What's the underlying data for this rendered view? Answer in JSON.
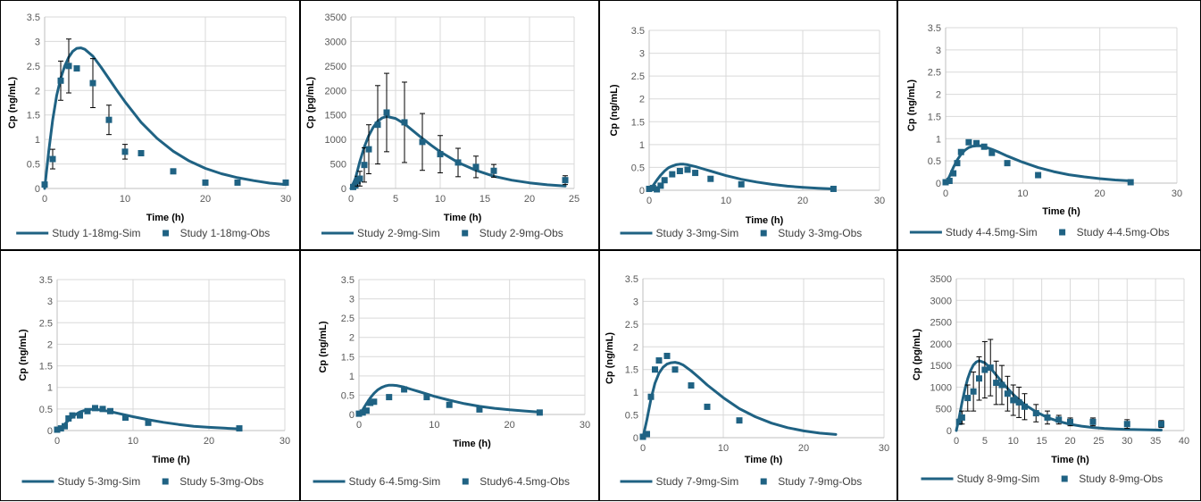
{
  "colors": {
    "series": "#1f6283",
    "grid": "#d9d9d9",
    "axis": "#bfbfbf",
    "text": "#595959"
  },
  "chart_data": [
    {
      "type": "scatter",
      "xlabel": "Time (h)",
      "ylabel": "Cp (ng/mL)",
      "xlim": [
        0,
        30
      ],
      "ylim": [
        0,
        3.5
      ],
      "xticks": [
        0,
        10,
        20,
        30
      ],
      "yticks": [
        0,
        0.5,
        1,
        1.5,
        2,
        2.5,
        3,
        3.5
      ],
      "grid": true,
      "legend": "bottom",
      "series": [
        {
          "name": "Study 1-18mg-Sim",
          "kind": "line",
          "x": [
            0,
            0.5,
            1,
            1.5,
            2,
            2.5,
            3,
            3.5,
            4,
            4.5,
            5,
            6,
            7,
            8,
            9,
            10,
            12,
            14,
            16,
            18,
            20,
            22,
            24,
            26,
            28,
            30
          ],
          "y": [
            0,
            0.75,
            1.4,
            1.9,
            2.25,
            2.5,
            2.68,
            2.8,
            2.86,
            2.87,
            2.84,
            2.7,
            2.48,
            2.24,
            2.0,
            1.77,
            1.35,
            1.02,
            0.76,
            0.56,
            0.41,
            0.3,
            0.22,
            0.16,
            0.11,
            0.08
          ]
        },
        {
          "name": "Study 1-18mg-Obs",
          "kind": "scatter",
          "x": [
            0,
            1,
            2,
            3,
            4,
            6,
            8,
            10,
            12,
            16,
            20,
            24,
            30
          ],
          "y": [
            0.08,
            0.6,
            2.2,
            2.5,
            2.45,
            2.15,
            1.4,
            0.75,
            0.72,
            0.35,
            0.12,
            0.12,
            0.12
          ],
          "err": [
            0,
            0.2,
            0.4,
            0.55,
            0,
            0.5,
            0.3,
            0.15,
            0,
            0,
            0,
            0,
            0
          ]
        }
      ]
    },
    {
      "type": "scatter",
      "xlabel": "Time (h)",
      "ylabel": "Cp (pg/mL)",
      "xlim": [
        0,
        25
      ],
      "ylim": [
        0,
        3500
      ],
      "xticks": [
        0,
        5,
        10,
        15,
        20,
        25
      ],
      "yticks": [
        0,
        500,
        1000,
        1500,
        2000,
        2500,
        3000,
        3500
      ],
      "grid": true,
      "legend": "bottom",
      "series": [
        {
          "name": "Study 2-9mg-Sim",
          "kind": "line",
          "x": [
            0,
            0.5,
            1,
            1.5,
            2,
            2.5,
            3,
            3.5,
            4,
            5,
            6,
            7,
            8,
            9,
            10,
            12,
            14,
            16,
            18,
            20,
            22,
            24
          ],
          "y": [
            0,
            200,
            550,
            850,
            1080,
            1250,
            1370,
            1440,
            1470,
            1430,
            1320,
            1170,
            1020,
            880,
            750,
            530,
            370,
            250,
            170,
            115,
            75,
            50
          ]
        },
        {
          "name": "Study 2-9mg-Obs",
          "kind": "scatter",
          "x": [
            0.25,
            0.5,
            0.75,
            1,
            1.5,
            2,
            3,
            4,
            6,
            8,
            10,
            12,
            14,
            16,
            24
          ],
          "y": [
            30,
            60,
            150,
            200,
            480,
            800,
            1300,
            1550,
            1350,
            950,
            700,
            530,
            440,
            360,
            170
          ],
          "err": [
            0,
            0,
            100,
            150,
            350,
            500,
            800,
            800,
            820,
            580,
            380,
            290,
            220,
            130,
            90
          ]
        }
      ]
    },
    {
      "type": "scatter",
      "xlabel": "Time (h)",
      "ylabel": "Cp (ng/mL)",
      "xlim": [
        0,
        30
      ],
      "ylim": [
        0,
        3.5
      ],
      "xticks": [
        0,
        10,
        20,
        30
      ],
      "yticks": [
        0,
        0.5,
        1,
        1.5,
        2,
        2.5,
        3,
        3.5
      ],
      "grid": true,
      "legend": "bottom",
      "series": [
        {
          "name": "Study 3-3mg-Sim",
          "kind": "line",
          "x": [
            0,
            0.5,
            1,
            1.5,
            2,
            2.5,
            3,
            3.5,
            4,
            4.5,
            5,
            6,
            7,
            8,
            9,
            10,
            12,
            14,
            16,
            18,
            20,
            22,
            24
          ],
          "y": [
            0,
            0.1,
            0.22,
            0.33,
            0.42,
            0.49,
            0.53,
            0.56,
            0.57,
            0.57,
            0.56,
            0.52,
            0.47,
            0.42,
            0.37,
            0.32,
            0.24,
            0.18,
            0.13,
            0.09,
            0.065,
            0.045,
            0.03
          ]
        },
        {
          "name": "Study 3-3mg-Obs",
          "kind": "scatter",
          "x": [
            0,
            0.5,
            1,
            1.5,
            2,
            3,
            4,
            5,
            6,
            8,
            12,
            24
          ],
          "y": [
            0.03,
            0.05,
            0.02,
            0.1,
            0.22,
            0.35,
            0.42,
            0.45,
            0.38,
            0.25,
            0.13,
            0.03
          ]
        }
      ]
    },
    {
      "type": "scatter",
      "xlabel": "Time (h)",
      "ylabel": "Cp (ng/mL)",
      "xlim": [
        0,
        30
      ],
      "ylim": [
        0,
        3.5
      ],
      "xticks": [
        0,
        10,
        20,
        30
      ],
      "yticks": [
        0,
        0.5,
        1,
        1.5,
        2,
        2.5,
        3,
        3.5
      ],
      "grid": true,
      "legend": "bottom",
      "series": [
        {
          "name": "Study 4-4.5mg-Sim",
          "kind": "line",
          "x": [
            0,
            0.5,
            1,
            1.5,
            2,
            2.5,
            3,
            3.5,
            4,
            4.5,
            5,
            6,
            7,
            8,
            9,
            10,
            12,
            14,
            16,
            18,
            20,
            22,
            24
          ],
          "y": [
            0,
            0.15,
            0.35,
            0.52,
            0.65,
            0.74,
            0.8,
            0.83,
            0.84,
            0.84,
            0.82,
            0.76,
            0.69,
            0.61,
            0.54,
            0.47,
            0.35,
            0.26,
            0.19,
            0.14,
            0.1,
            0.07,
            0.05
          ]
        },
        {
          "name": "Study 4-4.5mg-Obs",
          "kind": "scatter",
          "x": [
            0,
            0.5,
            1,
            1.5,
            2,
            3,
            4,
            5,
            6,
            8,
            12,
            24
          ],
          "y": [
            0.02,
            0.05,
            0.22,
            0.45,
            0.7,
            0.92,
            0.9,
            0.82,
            0.68,
            0.45,
            0.18,
            0.02
          ]
        }
      ]
    },
    {
      "type": "scatter",
      "xlabel": "Time (h)",
      "ylabel": "Cp (ng/mL)",
      "xlim": [
        0,
        30
      ],
      "ylim": [
        0,
        3.5
      ],
      "xticks": [
        0,
        10,
        20,
        30
      ],
      "yticks": [
        0,
        0.5,
        1,
        1.5,
        2,
        2.5,
        3,
        3.5
      ],
      "grid": true,
      "legend": "bottom",
      "series": [
        {
          "name": "Study 5-3mg-Sim",
          "kind": "line",
          "x": [
            0,
            0.5,
            1,
            1.5,
            2,
            2.5,
            3,
            3.5,
            4,
            4.5,
            5,
            6,
            7,
            8,
            9,
            10,
            12,
            14,
            16,
            18,
            20,
            22,
            24
          ],
          "y": [
            0,
            0.06,
            0.15,
            0.24,
            0.32,
            0.38,
            0.43,
            0.46,
            0.48,
            0.49,
            0.49,
            0.47,
            0.44,
            0.4,
            0.36,
            0.32,
            0.25,
            0.19,
            0.14,
            0.1,
            0.075,
            0.055,
            0.04
          ]
        },
        {
          "name": "Study 5-3mg-Obs",
          "kind": "scatter",
          "x": [
            0,
            0.5,
            1,
            1.5,
            2,
            3,
            4,
            5,
            6,
            7,
            9,
            12,
            24
          ],
          "y": [
            0.02,
            0.05,
            0.1,
            0.28,
            0.35,
            0.35,
            0.45,
            0.52,
            0.5,
            0.45,
            0.3,
            0.18,
            0.05
          ]
        }
      ]
    },
    {
      "type": "scatter",
      "xlabel": "Time (h)",
      "ylabel": "Cp (ng/mL)",
      "xlim": [
        0,
        30
      ],
      "ylim": [
        0,
        3.5
      ],
      "xticks": [
        0,
        10,
        20,
        30
      ],
      "yticks": [
        0,
        0.5,
        1,
        1.5,
        2,
        2.5,
        3,
        3.5
      ],
      "grid": true,
      "legend": "bottom",
      "series": [
        {
          "name": "Study 6-4.5mg-Sim",
          "kind": "line",
          "x": [
            0,
            0.5,
            1,
            1.5,
            2,
            2.5,
            3,
            3.5,
            4,
            4.5,
            5,
            6,
            7,
            8,
            9,
            10,
            12,
            14,
            16,
            18,
            20,
            22,
            24
          ],
          "y": [
            0,
            0.12,
            0.28,
            0.43,
            0.55,
            0.64,
            0.7,
            0.74,
            0.76,
            0.76,
            0.75,
            0.71,
            0.65,
            0.59,
            0.53,
            0.47,
            0.37,
            0.28,
            0.21,
            0.16,
            0.12,
            0.09,
            0.06
          ]
        },
        {
          "name": "Study6-4.5mg-Obs",
          "kind": "scatter",
          "x": [
            0,
            0.5,
            1,
            1.5,
            2,
            4,
            6,
            9,
            12,
            16,
            24
          ],
          "y": [
            0.02,
            0.05,
            0.1,
            0.3,
            0.33,
            0.45,
            0.65,
            0.45,
            0.25,
            0.13,
            0.05
          ]
        }
      ]
    },
    {
      "type": "scatter",
      "xlabel": "Time (h)",
      "ylabel": "Cp (ng/mL)",
      "xlim": [
        0,
        30
      ],
      "ylim": [
        0,
        3.5
      ],
      "xticks": [
        0,
        10,
        20,
        30
      ],
      "yticks": [
        0,
        0.5,
        1,
        1.5,
        2,
        2.5,
        3,
        3.5
      ],
      "grid": true,
      "legend": "bottom",
      "series": [
        {
          "name": "Study 7-9mg-Sim",
          "kind": "line",
          "x": [
            0,
            0.5,
            1,
            1.5,
            2,
            2.5,
            3,
            3.5,
            4,
            4.5,
            5,
            6,
            7,
            8,
            9,
            10,
            12,
            14,
            16,
            18,
            20,
            22,
            24
          ],
          "y": [
            0,
            0.4,
            0.85,
            1.2,
            1.42,
            1.55,
            1.62,
            1.65,
            1.66,
            1.64,
            1.6,
            1.47,
            1.32,
            1.16,
            1.02,
            0.88,
            0.64,
            0.46,
            0.32,
            0.22,
            0.15,
            0.1,
            0.07
          ]
        },
        {
          "name": "Study 7-9mg-Obs",
          "kind": "scatter",
          "x": [
            0,
            0.5,
            1,
            1.5,
            2,
            3,
            4,
            6,
            8,
            12
          ],
          "y": [
            0.02,
            0.08,
            0.9,
            1.5,
            1.7,
            1.8,
            1.5,
            1.15,
            0.68,
            0.38
          ]
        }
      ]
    },
    {
      "type": "scatter",
      "xlabel": "Time (h)",
      "ylabel": "Cp (pg/mL)",
      "xlim": [
        0,
        40
      ],
      "ylim": [
        0,
        3500
      ],
      "xticks": [
        0,
        5,
        10,
        15,
        20,
        25,
        30,
        35,
        40
      ],
      "yticks": [
        0,
        500,
        1000,
        1500,
        2000,
        2500,
        3000,
        3500
      ],
      "grid": true,
      "legend": "bottom",
      "series": [
        {
          "name": "Study 8-9mg-Sim",
          "kind": "line",
          "x": [
            0,
            0.5,
            1,
            1.5,
            2,
            2.5,
            3,
            3.5,
            4,
            5,
            6,
            7,
            8,
            9,
            10,
            12,
            14,
            16,
            18,
            20,
            22,
            24,
            26,
            28,
            30,
            32,
            34,
            36
          ],
          "y": [
            0,
            300,
            650,
            950,
            1200,
            1380,
            1510,
            1580,
            1610,
            1560,
            1440,
            1280,
            1120,
            970,
            830,
            600,
            430,
            300,
            210,
            145,
            100,
            70,
            50,
            35,
            25,
            20,
            15,
            10
          ]
        },
        {
          "name": "Study 8-9mg-Obs",
          "kind": "scatter",
          "x": [
            0.5,
            1,
            2,
            3,
            4,
            5,
            6,
            7,
            8,
            9,
            10,
            11,
            12,
            14,
            16,
            18,
            20,
            24,
            30,
            36
          ],
          "y": [
            200,
            300,
            750,
            900,
            1200,
            1400,
            1450,
            1100,
            1050,
            850,
            700,
            650,
            550,
            400,
            300,
            250,
            200,
            200,
            150,
            150
          ],
          "err": [
            0,
            150,
            300,
            450,
            500,
            650,
            650,
            500,
            450,
            400,
            350,
            350,
            300,
            200,
            150,
            100,
            90,
            90,
            100,
            80
          ]
        }
      ]
    }
  ]
}
